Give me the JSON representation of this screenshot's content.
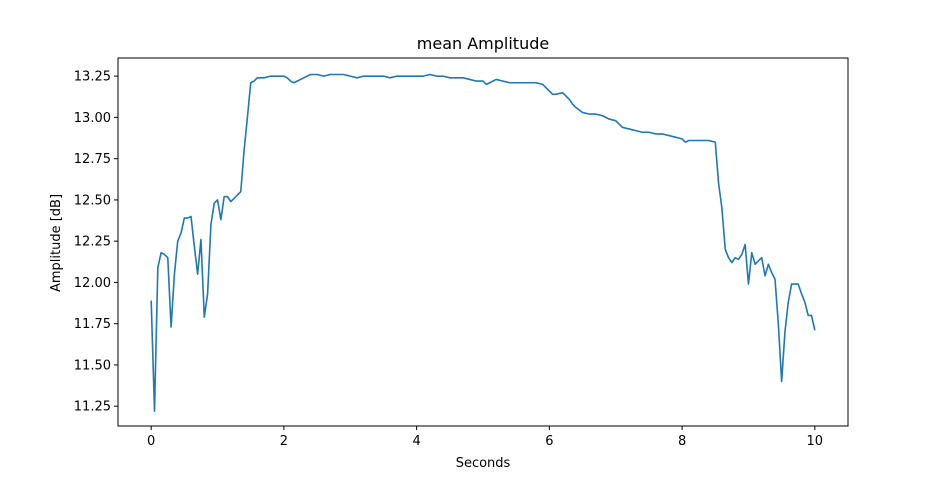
{
  "chart_data": {
    "type": "line",
    "title": "mean Amplitude",
    "xlabel": "Seconds",
    "ylabel": "Amplitude [dB]",
    "xlim": [
      -0.5,
      10.5
    ],
    "ylim": [
      11.13,
      13.36
    ],
    "xticks": [
      0,
      2,
      4,
      6,
      8,
      10
    ],
    "yticks": [
      11.25,
      11.5,
      11.75,
      12.0,
      12.25,
      12.5,
      12.75,
      13.0,
      13.25
    ],
    "ytick_labels": [
      "11.25",
      "11.50",
      "11.75",
      "12.00",
      "12.25",
      "12.50",
      "12.75",
      "13.00",
      "13.25"
    ],
    "grid": false,
    "line_color": "#1f77b4",
    "series": [
      {
        "x": [
          0.0,
          0.05,
          0.1,
          0.15,
          0.2,
          0.25,
          0.3,
          0.35,
          0.4,
          0.45,
          0.5,
          0.55,
          0.6,
          0.65,
          0.7,
          0.75,
          0.8,
          0.85,
          0.9,
          0.95,
          1.0,
          1.05,
          1.1,
          1.15,
          1.2,
          1.25,
          1.3,
          1.35,
          1.4,
          1.45,
          1.5,
          1.55,
          1.6,
          1.7,
          1.8,
          1.9,
          2.0,
          2.05,
          2.1,
          2.15,
          2.2,
          2.3,
          2.4,
          2.5,
          2.6,
          2.7,
          2.8,
          2.9,
          3.0,
          3.1,
          3.2,
          3.3,
          3.4,
          3.5,
          3.6,
          3.7,
          3.8,
          3.9,
          4.0,
          4.1,
          4.2,
          4.3,
          4.4,
          4.5,
          4.6,
          4.7,
          4.8,
          4.9,
          5.0,
          5.05,
          5.1,
          5.2,
          5.3,
          5.4,
          5.5,
          5.6,
          5.7,
          5.8,
          5.9,
          6.0,
          6.05,
          6.1,
          6.2,
          6.3,
          6.35,
          6.4,
          6.5,
          6.6,
          6.7,
          6.8,
          6.9,
          7.0,
          7.1,
          7.2,
          7.3,
          7.4,
          7.5,
          7.6,
          7.7,
          7.8,
          7.9,
          8.0,
          8.05,
          8.1,
          8.2,
          8.3,
          8.4,
          8.5,
          8.55,
          8.6,
          8.65,
          8.7,
          8.75,
          8.8,
          8.85,
          8.9,
          8.95,
          9.0,
          9.05,
          9.1,
          9.15,
          9.2,
          9.25,
          9.3,
          9.35,
          9.4,
          9.45,
          9.5,
          9.55,
          9.6,
          9.65,
          9.7,
          9.75,
          9.8,
          9.85,
          9.9,
          9.95,
          10.0
        ],
        "values": [
          11.89,
          11.22,
          12.09,
          12.18,
          12.17,
          12.15,
          11.73,
          12.05,
          12.25,
          12.3,
          12.39,
          12.39,
          12.4,
          12.22,
          12.05,
          12.26,
          11.79,
          11.93,
          12.35,
          12.48,
          12.5,
          12.38,
          12.52,
          12.52,
          12.49,
          12.51,
          12.53,
          12.55,
          12.8,
          13.0,
          13.21,
          13.22,
          13.24,
          13.24,
          13.25,
          13.25,
          13.25,
          13.24,
          13.22,
          13.21,
          13.22,
          13.24,
          13.26,
          13.26,
          13.25,
          13.26,
          13.26,
          13.26,
          13.25,
          13.24,
          13.25,
          13.25,
          13.25,
          13.25,
          13.24,
          13.25,
          13.25,
          13.25,
          13.25,
          13.25,
          13.26,
          13.25,
          13.25,
          13.24,
          13.24,
          13.24,
          13.23,
          13.22,
          13.22,
          13.2,
          13.21,
          13.23,
          13.22,
          13.21,
          13.21,
          13.21,
          13.21,
          13.21,
          13.2,
          13.16,
          13.14,
          13.14,
          13.15,
          13.11,
          13.08,
          13.06,
          13.03,
          13.02,
          13.02,
          13.01,
          12.99,
          12.98,
          12.94,
          12.93,
          12.92,
          12.91,
          12.91,
          12.9,
          12.9,
          12.89,
          12.88,
          12.87,
          12.85,
          12.86,
          12.86,
          12.86,
          12.86,
          12.85,
          12.6,
          12.45,
          12.2,
          12.15,
          12.12,
          12.15,
          12.14,
          12.17,
          12.23,
          11.99,
          12.18,
          12.11,
          12.13,
          12.15,
          12.04,
          12.11,
          12.06,
          12.02,
          11.75,
          11.4,
          11.7,
          11.88,
          11.99,
          11.99,
          11.99,
          11.93,
          11.88,
          11.8,
          11.8,
          11.71
        ]
      }
    ]
  }
}
